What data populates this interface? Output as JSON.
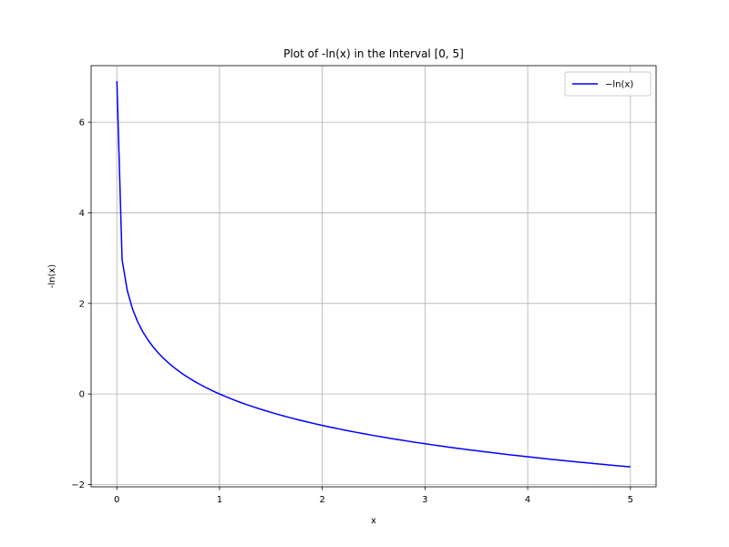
{
  "chart_data": {
    "type": "line",
    "title": "Plot of -ln(x) in the Interval [0, 5]",
    "xlabel": "x",
    "ylabel": "-ln(x)",
    "xlim": [
      -0.25,
      5.25
    ],
    "ylim": [
      -2.05,
      7.25
    ],
    "x_ticks": [
      0,
      1,
      2,
      3,
      4,
      5
    ],
    "x_tick_labels": [
      "0",
      "1",
      "2",
      "3",
      "4",
      "5"
    ],
    "y_ticks": [
      -2,
      0,
      2,
      4,
      6
    ],
    "y_tick_labels": [
      "−2",
      "0",
      "2",
      "4",
      "6"
    ],
    "grid": true,
    "legend_position": "top-right",
    "series": [
      {
        "name": "−ln(x)",
        "color": "#0000ff",
        "function": "-ln(x)",
        "x_start": 0.001,
        "x_end": 5,
        "samples": 100
      }
    ]
  },
  "colors": {
    "grid": "#b0b0b0",
    "axes": "#000000",
    "background": "#ffffff"
  }
}
